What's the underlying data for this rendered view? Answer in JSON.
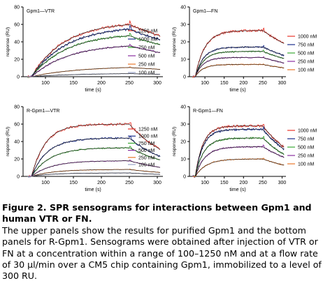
{
  "colors": {
    "1250": "#e8342a",
    "1000": "#1b2d8c",
    "750": "#3aa835",
    "500": "#8a2ea0",
    "250": "#e8782a",
    "100": "#9aa3c8",
    "fit": "#111111"
  },
  "caption": {
    "title": "Figure 2. SPR sensograms for interactions between Gpm1 and human VTR or FN.",
    "body": "The upper panels show the results for purified Gpm1 and the bottom panels for R-Gpm1. Sensograms were obtained after injection of VTR or FN at a concentration within a range of 100–1250 nM and at a flow rate of 30 µl/min over a CM5 chip containing Gpm1, immobilized to a level of 300 RU."
  },
  "chart_data": [
    {
      "type": "line",
      "title": "Gpm1—VTR",
      "xlabel": "time (s)",
      "ylabel": "response (RU)",
      "xlim": [
        60,
        310
      ],
      "ylim": [
        0,
        80
      ],
      "xticks": [
        100,
        150,
        200,
        250,
        300
      ],
      "yticks": [
        0,
        20,
        40,
        60,
        80
      ],
      "legend_position": "right",
      "injection_end": 250,
      "series": [
        {
          "name": "1250 nM",
          "key": "1250",
          "rmax": 63,
          "kon": 0.017,
          "koff": 0.0045
        },
        {
          "name": "1000 nM",
          "key": "1000",
          "rmax": 58,
          "kon": 0.016,
          "koff": 0.0045
        },
        {
          "name": "750 nM",
          "key": "750",
          "rmax": 50,
          "kon": 0.016,
          "koff": 0.0045
        },
        {
          "name": "500 nM",
          "key": "500",
          "rmax": 38,
          "kon": 0.015,
          "koff": 0.0045
        },
        {
          "name": "250 nM",
          "key": "250",
          "rmax": 12,
          "kon": 0.012,
          "koff": 0.004
        },
        {
          "name": "100 nM",
          "key": "100",
          "rmax": 4,
          "kon": 0.012,
          "koff": 0.004
        }
      ]
    },
    {
      "type": "line",
      "title": "Gpm1—FN",
      "xlabel": "time (s)",
      "ylabel": "response (RU)",
      "xlim": [
        60,
        310
      ],
      "ylim": [
        0,
        40
      ],
      "xticks": [
        100,
        150,
        200,
        250,
        300
      ],
      "yticks": [
        0,
        10,
        20,
        30,
        40
      ],
      "legend_position": "right",
      "injection_end": 250,
      "series": [
        {
          "name": "1000 nM",
          "key": "1250",
          "rmax": 26.5,
          "kon": 0.04,
          "koff": 0.006
        },
        {
          "name": "750 nM",
          "key": "1000",
          "rmax": 17,
          "kon": 0.045,
          "koff": 0.006
        },
        {
          "name": "500 nM",
          "key": "750",
          "rmax": 14.5,
          "kon": 0.045,
          "koff": 0.006
        },
        {
          "name": "250 nM",
          "key": "500",
          "rmax": 11,
          "kon": 0.05,
          "koff": 0.006
        },
        {
          "name": "100 nM",
          "key": "250",
          "rmax": 7,
          "kon": 0.05,
          "koff": 0.006
        }
      ]
    },
    {
      "type": "line",
      "title": "R-Gpm1—VTR",
      "xlabel": "time (s)",
      "ylabel": "response (RU)",
      "xlim": [
        60,
        310
      ],
      "ylim": [
        0,
        80
      ],
      "xticks": [
        100,
        150,
        200,
        250,
        300
      ],
      "yticks": [
        0,
        20,
        40,
        60,
        80
      ],
      "legend_position": "right",
      "injection_end": 250,
      "series": [
        {
          "name": "1250 nM",
          "key": "1250",
          "rmax": 60,
          "kon": 0.04,
          "koff": 0.012
        },
        {
          "name": "1000 nM",
          "key": "1000",
          "rmax": 44,
          "kon": 0.035,
          "koff": 0.012
        },
        {
          "name": "750 nM",
          "key": "750",
          "rmax": 33,
          "kon": 0.03,
          "koff": 0.01
        },
        {
          "name": "500 nM",
          "key": "500",
          "rmax": 18,
          "kon": 0.028,
          "koff": 0.01
        },
        {
          "name": "250 nM",
          "key": "250",
          "rmax": 8,
          "kon": 0.025,
          "koff": 0.01
        },
        {
          "name": "100 nM",
          "key": "100",
          "rmax": 4,
          "kon": 0.025,
          "koff": 0.01
        }
      ]
    },
    {
      "type": "line",
      "title": "R-Gpm1—FN",
      "xlabel": "time (s)",
      "ylabel": "response (RU)",
      "xlim": [
        60,
        310
      ],
      "ylim": [
        0,
        40
      ],
      "xticks": [
        100,
        150,
        200,
        250,
        300
      ],
      "yticks": [
        0,
        10,
        20,
        30,
        40
      ],
      "legend_position": "right",
      "injection_end": 250,
      "series": [
        {
          "name": "1000 nM",
          "key": "1250",
          "rmax": 29,
          "kon": 0.05,
          "koff": 0.01
        },
        {
          "name": "750 nM",
          "key": "1000",
          "rmax": 27,
          "kon": 0.05,
          "koff": 0.01
        },
        {
          "name": "500 nM",
          "key": "750",
          "rmax": 22,
          "kon": 0.045,
          "koff": 0.01
        },
        {
          "name": "250 nM",
          "key": "500",
          "rmax": 17,
          "kon": 0.04,
          "koff": 0.008
        },
        {
          "name": "100 nM",
          "key": "250",
          "rmax": 10,
          "kon": 0.035,
          "koff": 0.008
        }
      ]
    }
  ]
}
